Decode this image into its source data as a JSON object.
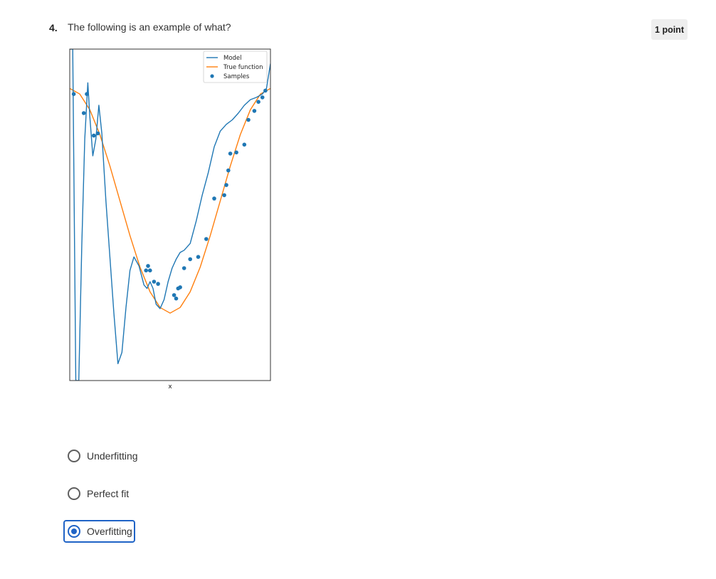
{
  "question": {
    "number": "4.",
    "text": "The following is an example of what?",
    "points": "1 point"
  },
  "chart_data": {
    "type": "line",
    "xlabel": "x",
    "ylabel": "",
    "xlim": [
      0,
      1
    ],
    "ylim": [
      -1.6,
      1.35
    ],
    "grid": false,
    "legend_position": "top-right",
    "legend": [
      "Model",
      "True function",
      "Samples"
    ],
    "series": [
      {
        "name": "True function",
        "color": "#ff7f0e",
        "x": [
          0,
          0.05,
          0.1,
          0.15,
          0.2,
          0.25,
          0.3,
          0.35,
          0.4,
          0.45,
          0.5,
          0.55,
          0.6,
          0.65,
          0.7,
          0.75,
          0.8,
          0.85,
          0.9,
          0.95,
          1.0
        ],
        "y": [
          1.0,
          0.95,
          0.81,
          0.59,
          0.31,
          0.0,
          -0.31,
          -0.59,
          -0.81,
          -0.95,
          -1.0,
          -0.95,
          -0.81,
          -0.59,
          -0.31,
          0.0,
          0.31,
          0.59,
          0.81,
          0.95,
          1.0
        ]
      },
      {
        "name": "Model",
        "color": "#1f77b4",
        "x": [
          0.0,
          0.015,
          0.03,
          0.045,
          0.06,
          0.075,
          0.09,
          0.1,
          0.115,
          0.13,
          0.145,
          0.16,
          0.18,
          0.2,
          0.22,
          0.24,
          0.26,
          0.28,
          0.3,
          0.32,
          0.345,
          0.37,
          0.385,
          0.4,
          0.415,
          0.43,
          0.45,
          0.47,
          0.49,
          0.51,
          0.53,
          0.55,
          0.57,
          0.6,
          0.63,
          0.66,
          0.69,
          0.72,
          0.75,
          0.78,
          0.81,
          0.84,
          0.87,
          0.9,
          0.93,
          0.96,
          0.98,
          1.0
        ],
        "y": [
          1.35,
          1.35,
          -1.6,
          -1.6,
          -0.4,
          0.55,
          1.05,
          0.75,
          0.4,
          0.55,
          0.85,
          0.6,
          0.0,
          -0.5,
          -1.0,
          -1.45,
          -1.35,
          -0.95,
          -0.62,
          -0.5,
          -0.58,
          -0.75,
          -0.78,
          -0.72,
          -0.78,
          -0.92,
          -0.96,
          -0.88,
          -0.72,
          -0.6,
          -0.52,
          -0.46,
          -0.44,
          -0.38,
          -0.18,
          0.05,
          0.25,
          0.48,
          0.62,
          0.68,
          0.72,
          0.78,
          0.85,
          0.9,
          0.92,
          0.95,
          1.0,
          1.22
        ]
      }
    ],
    "scatter": {
      "name": "Samples",
      "color": "#1f77b4",
      "x": [
        0.02,
        0.07,
        0.085,
        0.12,
        0.14,
        0.38,
        0.39,
        0.4,
        0.42,
        0.44,
        0.52,
        0.53,
        0.54,
        0.55,
        0.57,
        0.6,
        0.64,
        0.68,
        0.72,
        0.77,
        0.78,
        0.79,
        0.8,
        0.83,
        0.87,
        0.89,
        0.92,
        0.94,
        0.96,
        0.975
      ],
      "y": [
        0.95,
        0.78,
        0.95,
        0.58,
        0.6,
        -0.62,
        -0.58,
        -0.62,
        -0.72,
        -0.74,
        -0.84,
        -0.87,
        -0.78,
        -0.77,
        -0.6,
        -0.52,
        -0.5,
        -0.34,
        0.02,
        0.05,
        0.14,
        0.27,
        0.42,
        0.43,
        0.5,
        0.72,
        0.8,
        0.88,
        0.92,
        0.98
      ]
    }
  },
  "options": [
    {
      "label": "Underfitting",
      "selected": false
    },
    {
      "label": "Perfect fit",
      "selected": false
    },
    {
      "label": "Overfitting",
      "selected": true
    }
  ]
}
